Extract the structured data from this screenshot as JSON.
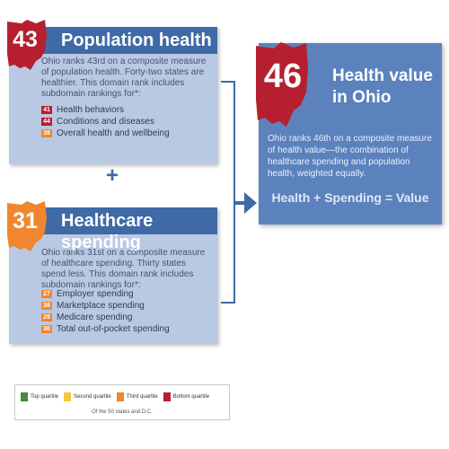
{
  "colors": {
    "top_quartile": "#4a8a3b",
    "second_quartile": "#f3c743",
    "third_quartile": "#f0862d",
    "bottom_quartile": "#b51f2f",
    "panel_header": "#3f6aa6",
    "panel_body": "#b9c9e4",
    "value_panel": "#5b82bd"
  },
  "population": {
    "rank": "43",
    "title": "Population health",
    "description": "Ohio ranks 43rd on a composite measure of population health. Forty-two states are healthier. This domain rank includes subdomain rankings for*:",
    "subdomains": [
      {
        "rank": "41",
        "label": "Health behaviors",
        "quartile": "bottom"
      },
      {
        "rank": "44",
        "label": "Conditions and diseases",
        "quartile": "bottom"
      },
      {
        "rank": "38",
        "label": "Overall health and wellbeing",
        "quartile": "third"
      }
    ]
  },
  "plus_sign": "+",
  "healthcare": {
    "rank": "31",
    "title": "Healthcare spending",
    "description": "Ohio ranks 31st on a composite measure of healthcare spending. Thirty states spend less. This domain rank includes subdomain rankings for*:",
    "subdomains": [
      {
        "rank": "27",
        "label": "Employer spending",
        "quartile": "third"
      },
      {
        "rank": "38",
        "label": "Marketplace spending",
        "quartile": "third"
      },
      {
        "rank": "29",
        "label": "Medicare spending",
        "quartile": "third"
      },
      {
        "rank": "30",
        "label": "Total out-of-pocket spending",
        "quartile": "third"
      }
    ]
  },
  "health_value": {
    "rank": "46",
    "title": "Health value in Ohio",
    "description": "Ohio ranks 46th on a composite measure of health value—the combination of healthcare spending and population health, weighted equally.",
    "formula": "Health + Spending = Value"
  },
  "legend": {
    "items": [
      {
        "label": "Top quartile",
        "color": "#4a8a3b"
      },
      {
        "label": "Second quartile",
        "color": "#f3c743"
      },
      {
        "label": "Third quartile",
        "color": "#f0862d"
      },
      {
        "label": "Bottom quartile",
        "color": "#b51f2f"
      }
    ],
    "note": "Of the 50 states and D.C."
  },
  "icons": {
    "state_outline": "ohio-state-icon",
    "arrow": "arrow-right-icon"
  }
}
